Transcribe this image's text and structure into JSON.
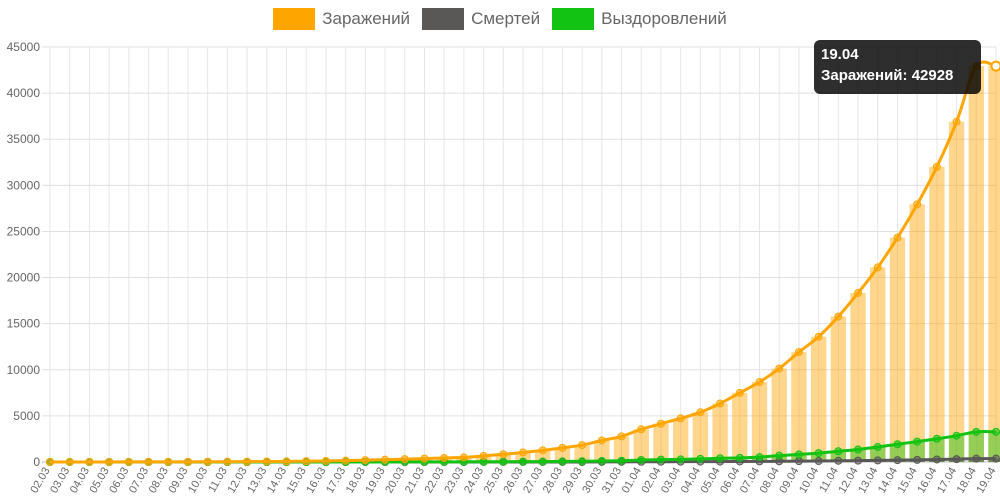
{
  "chart_data": {
    "type": "bar-line",
    "title": "",
    "categories": [
      "02.03",
      "03.03",
      "04.03",
      "05.03",
      "06.03",
      "07.03",
      "08.03",
      "09.03",
      "10.03",
      "11.03",
      "12.03",
      "13.03",
      "14.03",
      "15.03",
      "16.03",
      "17.03",
      "18.03",
      "19.03",
      "20.03",
      "21.03",
      "22.03",
      "23.03",
      "24.03",
      "25.03",
      "26.03",
      "27.03",
      "28.03",
      "29.03",
      "30.03",
      "31.03",
      "01.04",
      "02.04",
      "03.04",
      "04.04",
      "05.04",
      "06.04",
      "07.04",
      "08.04",
      "09.04",
      "10.04",
      "11.04",
      "12.04",
      "13.04",
      "14.04",
      "15.04",
      "16.04",
      "17.04",
      "18.04",
      "19.04"
    ],
    "series": [
      {
        "name": "Заражений",
        "color": "#FFA500",
        "values": [
          3,
          3,
          3,
          4,
          10,
          14,
          17,
          20,
          28,
          34,
          45,
          59,
          63,
          90,
          114,
          147,
          199,
          253,
          306,
          367,
          438,
          495,
          658,
          840,
          1036,
          1264,
          1534,
          1836,
          2337,
          2777,
          3548,
          4149,
          4731,
          5389,
          6343,
          7497,
          8672,
          10131,
          11917,
          13584,
          15770,
          18328,
          21102,
          24324,
          27938,
          32008,
          36897,
          42928,
          42928
        ]
      },
      {
        "name": "Смертей",
        "color": "#5A5757",
        "values": [
          0,
          0,
          0,
          0,
          0,
          0,
          0,
          0,
          0,
          0,
          0,
          0,
          0,
          0,
          0,
          0,
          1,
          1,
          1,
          1,
          1,
          1,
          3,
          3,
          3,
          4,
          4,
          5,
          9,
          17,
          24,
          30,
          34,
          43,
          47,
          58,
          63,
          76,
          94,
          106,
          130,
          148,
          170,
          198,
          232,
          273,
          313,
          361,
          361
        ]
      },
      {
        "name": "Выздоровлений",
        "color": "#13C313",
        "values": [
          0,
          0,
          0,
          0,
          0,
          0,
          0,
          0,
          0,
          0,
          0,
          0,
          0,
          0,
          0,
          0,
          3,
          3,
          8,
          12,
          12,
          17,
          26,
          29,
          39,
          46,
          66,
          76,
          112,
          134,
          217,
          260,
          281,
          336,
          400,
          454,
          534,
          693,
          822,
          967,
          1166,
          1357,
          1631,
          1926,
          2213,
          2516,
          2853,
          3272,
          3272
        ]
      }
    ],
    "ylim": [
      0,
      45000
    ],
    "yticks": [
      "0",
      "5000",
      "10000",
      "15000",
      "20000",
      "25000",
      "30000",
      "35000",
      "40000",
      "45000"
    ],
    "legend_position": "top",
    "grid": true,
    "tooltip": {
      "title": "19.04",
      "label": "Заражений: 42928"
    }
  }
}
